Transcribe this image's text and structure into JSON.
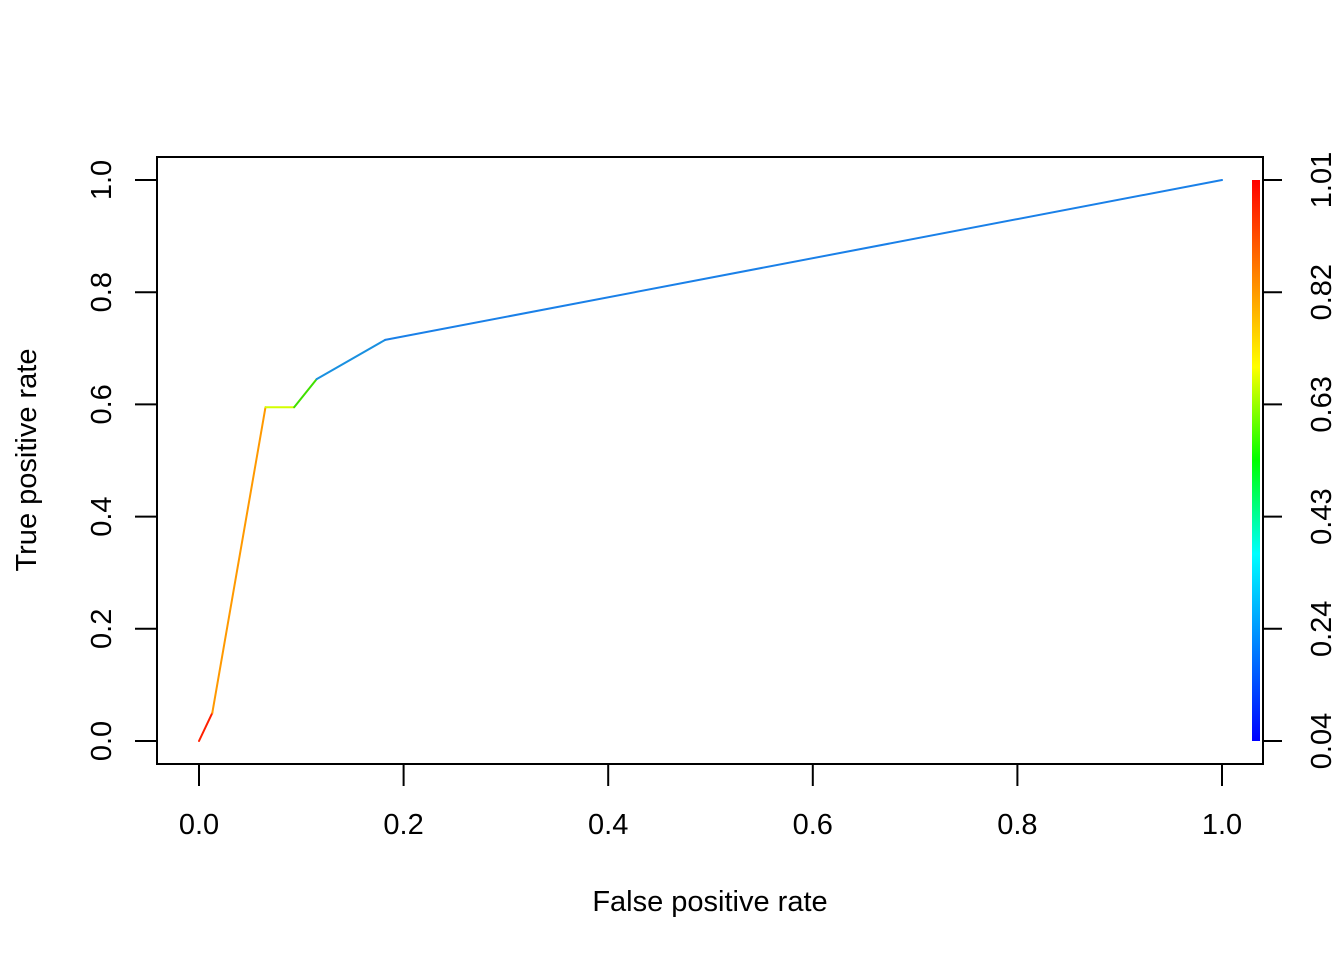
{
  "chart_data": {
    "type": "line",
    "title": "",
    "xlabel": "False positive rate",
    "ylabel": "True positive rate",
    "xlim": [
      0,
      1
    ],
    "ylim": [
      0,
      1
    ],
    "x_ticks": [
      "0.0",
      "0.2",
      "0.4",
      "0.6",
      "0.8",
      "1.0"
    ],
    "y_ticks": [
      "0.0",
      "0.2",
      "0.4",
      "0.6",
      "0.8",
      "1.0"
    ],
    "grid": false,
    "legend": "none",
    "colorbar": {
      "position": "right",
      "tick_labels": [
        "0.04",
        "0.24",
        "0.43",
        "0.63",
        "0.82",
        "1.01"
      ],
      "colors_low_to_high": [
        "#0000ff",
        "#0080ff",
        "#00ffff",
        "#00ff00",
        "#ffff00",
        "#ff8000",
        "#ff0000"
      ]
    },
    "series": [
      {
        "points": [
          {
            "x": 0.0,
            "y": 0.0,
            "color": "#ff0000"
          },
          {
            "x": 0.013,
            "y": 0.05,
            "color": "#ff2000"
          },
          {
            "x": 0.065,
            "y": 0.595,
            "color": "#ff9900"
          },
          {
            "x": 0.093,
            "y": 0.595,
            "color": "#d4ff00"
          },
          {
            "x": 0.115,
            "y": 0.645,
            "color": "#40e000"
          },
          {
            "x": 0.182,
            "y": 0.715,
            "color": "#1a90e0"
          },
          {
            "x": 1.0,
            "y": 1.0,
            "color": "#1a80e8"
          }
        ]
      }
    ]
  }
}
